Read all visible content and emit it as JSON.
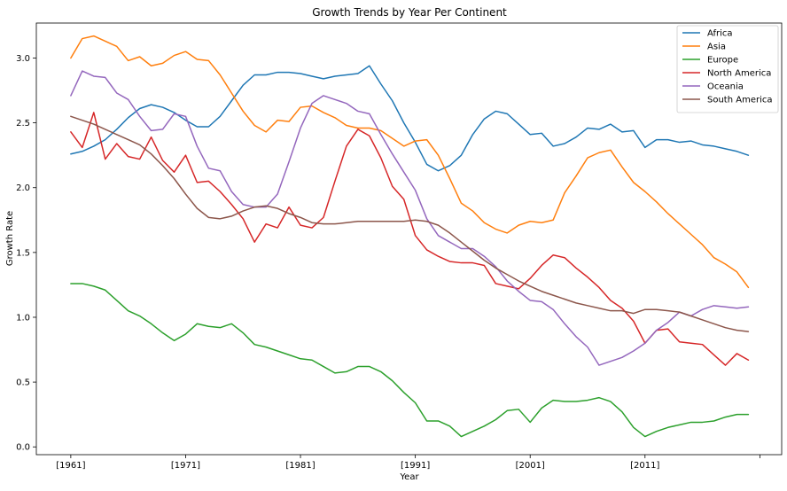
{
  "chart_data": {
    "type": "line",
    "title": "Growth Trends by Year Per Continent",
    "xlabel": "Year",
    "ylabel": "Growth Rate",
    "x_tick_labels": [
      "[1961]",
      "[1971]",
      "[1981]",
      "[1991]",
      "[2001]",
      "[2011]",
      ""
    ],
    "x_tick_values": [
      1961,
      1971,
      1981,
      1991,
      2001,
      2011,
      2021
    ],
    "y_tick_values": [
      0.0,
      0.5,
      1.0,
      1.5,
      2.0,
      2.5,
      3.0
    ],
    "y_tick_labels": [
      "0.0",
      "0.5",
      "1.0",
      "1.5",
      "2.0",
      "2.5",
      "3.0"
    ],
    "xlim": [
      1958.0,
      2022.9
    ],
    "ylim": [
      -0.06,
      3.27
    ],
    "grid": false,
    "legend_position": "top-right",
    "x": [
      1961,
      1962,
      1963,
      1964,
      1965,
      1966,
      1967,
      1968,
      1969,
      1970,
      1971,
      1972,
      1973,
      1974,
      1975,
      1976,
      1977,
      1978,
      1979,
      1980,
      1981,
      1982,
      1983,
      1984,
      1985,
      1986,
      1987,
      1988,
      1989,
      1990,
      1991,
      1992,
      1993,
      1994,
      1995,
      1996,
      1997,
      1998,
      1999,
      2000,
      2001,
      2002,
      2003,
      2004,
      2005,
      2006,
      2007,
      2008,
      2009,
      2010,
      2011,
      2012,
      2013,
      2014,
      2015,
      2016,
      2017,
      2018,
      2019,
      2020
    ],
    "series": [
      {
        "name": "Africa",
        "color": "#1f77b4",
        "values": [
          2.26,
          2.28,
          2.32,
          2.37,
          2.45,
          2.54,
          2.61,
          2.64,
          2.62,
          2.58,
          2.52,
          2.47,
          2.47,
          2.55,
          2.67,
          2.79,
          2.87,
          2.87,
          2.89,
          2.89,
          2.88,
          2.86,
          2.84,
          2.86,
          2.87,
          2.88,
          2.94,
          2.8,
          2.67,
          2.5,
          2.35,
          2.18,
          2.13,
          2.17,
          2.25,
          2.41,
          2.53,
          2.59,
          2.57,
          2.49,
          2.41,
          2.42,
          2.32,
          2.34,
          2.39,
          2.46,
          2.45,
          2.49,
          2.43,
          2.44,
          2.31,
          2.37,
          2.37,
          2.35,
          2.36,
          2.33,
          2.32,
          2.3,
          2.28,
          2.25
        ]
      },
      {
        "name": "Asia",
        "color": "#ff7f0e",
        "values": [
          3.0,
          3.15,
          3.17,
          3.13,
          3.09,
          2.98,
          3.01,
          2.94,
          2.96,
          3.02,
          3.05,
          2.99,
          2.98,
          2.87,
          2.73,
          2.59,
          2.48,
          2.43,
          2.52,
          2.51,
          2.62,
          2.63,
          2.58,
          2.54,
          2.48,
          2.46,
          2.46,
          2.44,
          2.38,
          2.32,
          2.36,
          2.37,
          2.25,
          2.07,
          1.88,
          1.82,
          1.73,
          1.68,
          1.65,
          1.71,
          1.74,
          1.73,
          1.75,
          1.96,
          2.09,
          2.23,
          2.27,
          2.29,
          2.16,
          2.04,
          1.97,
          1.89,
          1.8,
          1.72,
          1.64,
          1.56,
          1.46,
          1.41,
          1.35,
          1.23
        ]
      },
      {
        "name": "Europe",
        "color": "#2ca02c",
        "values": [
          1.26,
          1.26,
          1.24,
          1.21,
          1.13,
          1.05,
          1.01,
          0.95,
          0.88,
          0.82,
          0.87,
          0.95,
          0.93,
          0.92,
          0.95,
          0.88,
          0.79,
          0.77,
          0.74,
          0.71,
          0.68,
          0.67,
          0.62,
          0.57,
          0.58,
          0.62,
          0.62,
          0.58,
          0.51,
          0.42,
          0.34,
          0.2,
          0.2,
          0.16,
          0.08,
          0.12,
          0.16,
          0.21,
          0.28,
          0.29,
          0.19,
          0.3,
          0.36,
          0.35,
          0.35,
          0.36,
          0.38,
          0.35,
          0.27,
          0.15,
          0.08,
          0.12,
          0.15,
          0.17,
          0.19,
          0.19,
          0.2,
          0.23,
          0.25,
          0.25
        ]
      },
      {
        "name": "North America",
        "color": "#d62728",
        "values": [
          2.43,
          2.31,
          2.58,
          2.22,
          2.34,
          2.24,
          2.22,
          2.39,
          2.21,
          2.12,
          2.25,
          2.04,
          2.05,
          1.97,
          1.87,
          1.76,
          1.58,
          1.72,
          1.69,
          1.85,
          1.71,
          1.69,
          1.77,
          2.05,
          2.32,
          2.45,
          2.4,
          2.23,
          2.01,
          1.91,
          1.63,
          1.52,
          1.47,
          1.43,
          1.42,
          1.42,
          1.4,
          1.26,
          1.24,
          1.22,
          1.3,
          1.4,
          1.48,
          1.46,
          1.38,
          1.31,
          1.23,
          1.13,
          1.07,
          0.97,
          0.8,
          0.9,
          0.91,
          0.81,
          0.8,
          0.79,
          0.71,
          0.63,
          0.72,
          0.67
        ]
      },
      {
        "name": "Oceania",
        "color": "#9467bd",
        "values": [
          2.71,
          2.9,
          2.86,
          2.85,
          2.73,
          2.68,
          2.55,
          2.44,
          2.45,
          2.57,
          2.55,
          2.32,
          2.15,
          2.13,
          1.97,
          1.87,
          1.85,
          1.85,
          1.95,
          2.2,
          2.46,
          2.65,
          2.71,
          2.68,
          2.65,
          2.59,
          2.57,
          2.41,
          2.26,
          2.12,
          1.98,
          1.76,
          1.63,
          1.58,
          1.53,
          1.53,
          1.47,
          1.39,
          1.28,
          1.2,
          1.13,
          1.12,
          1.06,
          0.95,
          0.85,
          0.77,
          0.63,
          0.66,
          0.69,
          0.74,
          0.8,
          0.9,
          0.96,
          1.04,
          1.01,
          1.06,
          1.09,
          1.08,
          1.07,
          1.08
        ]
      },
      {
        "name": "South America",
        "color": "#8c564b",
        "values": [
          2.55,
          2.52,
          2.49,
          2.45,
          2.41,
          2.37,
          2.33,
          2.26,
          2.17,
          2.07,
          1.95,
          1.84,
          1.77,
          1.76,
          1.78,
          1.82,
          1.85,
          1.86,
          1.84,
          1.8,
          1.77,
          1.73,
          1.72,
          1.72,
          1.73,
          1.74,
          1.74,
          1.74,
          1.74,
          1.74,
          1.75,
          1.74,
          1.71,
          1.65,
          1.58,
          1.51,
          1.44,
          1.38,
          1.33,
          1.28,
          1.24,
          1.2,
          1.17,
          1.14,
          1.11,
          1.09,
          1.07,
          1.05,
          1.05,
          1.03,
          1.06,
          1.06,
          1.05,
          1.04,
          1.01,
          0.98,
          0.95,
          0.92,
          0.9,
          0.89
        ]
      }
    ]
  }
}
